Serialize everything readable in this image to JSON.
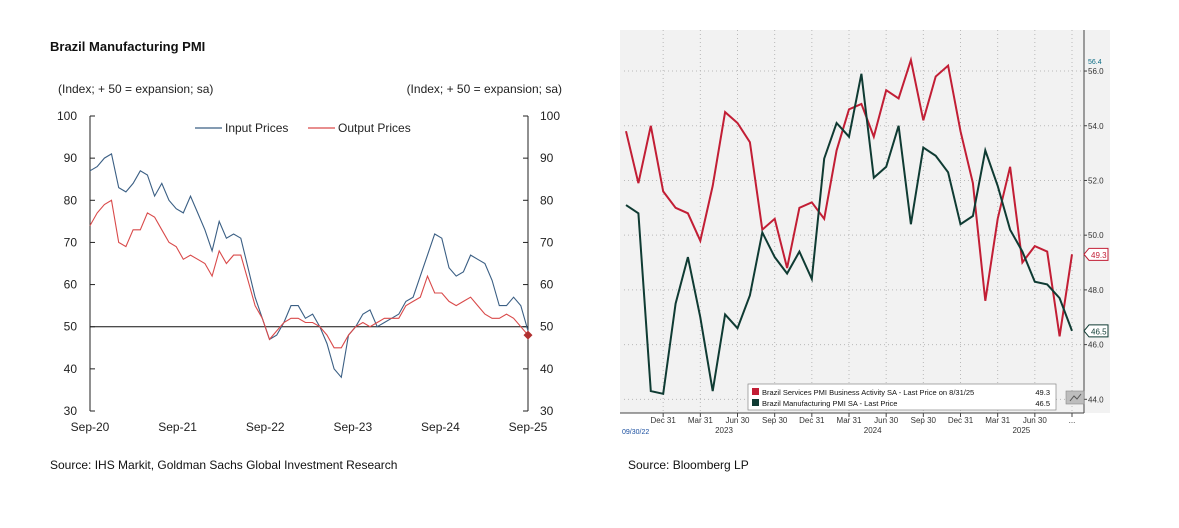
{
  "sources": {
    "left": "Source: IHS Markit, Goldman Sachs Global Investment Research",
    "right": "Source: Bloomberg LP"
  },
  "chart_data": [
    {
      "type": "line",
      "title": "Brazil Manufacturing PMI",
      "ylabel_left": "(Index; + 50 = expansion; sa)",
      "ylabel_right": "(Index; + 50 = expansion; sa)",
      "ylim": [
        30,
        100
      ],
      "yticks": [
        30,
        40,
        50,
        60,
        70,
        80,
        90,
        100
      ],
      "reference_line": 50,
      "xtick_labels": [
        "Sep-20",
        "Sep-21",
        "Sep-22",
        "Sep-23",
        "Sep-24",
        "Sep-25"
      ],
      "x_start": "Sep-20",
      "x_end": "Sep-25",
      "legend": [
        "Input Prices",
        "Output Prices"
      ],
      "colors": {
        "input": "#3b5f84",
        "output": "#d94a4a",
        "marker": "#b03030"
      },
      "series": [
        {
          "name": "Input Prices",
          "values": [
            87,
            88,
            90,
            91,
            83,
            82,
            84,
            87,
            86,
            81,
            84,
            80,
            78,
            77,
            81,
            77,
            73,
            68,
            75,
            71,
            72,
            71,
            64,
            57,
            52,
            47,
            48,
            51,
            55,
            55,
            52,
            53,
            50,
            46,
            40,
            38,
            48,
            50,
            53,
            54,
            50,
            51,
            52,
            53,
            56,
            57,
            62,
            67,
            72,
            71,
            64,
            62,
            63,
            67,
            66,
            65,
            61,
            55,
            55,
            57,
            55,
            49
          ]
        },
        {
          "name": "Output Prices",
          "values": [
            74,
            77,
            79,
            80,
            70,
            69,
            73,
            73,
            77,
            76,
            73,
            70,
            69,
            66,
            67,
            66,
            65,
            62,
            68,
            65,
            67,
            67,
            61,
            55,
            52,
            47,
            49,
            51,
            52,
            52,
            51,
            51,
            50,
            48,
            45,
            45,
            48,
            50,
            51,
            50,
            51,
            52,
            52,
            52,
            55,
            56,
            57,
            62,
            58,
            58,
            56,
            55,
            56,
            57,
            55,
            53,
            52,
            52,
            53,
            52,
            50,
            48
          ]
        }
      ],
      "last_marker_value": 48
    },
    {
      "type": "line",
      "title": "",
      "ylim": [
        43.5,
        57.5
      ],
      "yticks": [
        "44.0",
        "46.0",
        "48.0",
        "50.0",
        "52.0",
        "54.0",
        "56.0"
      ],
      "top_tag": "56.4",
      "x_start_label": "09/30/22",
      "x_month_labels": [
        "Dec 31",
        "Mar 31",
        "Jun 30",
        "Sep 30",
        "Dec 31",
        "Mar 31",
        "Jun 30",
        "Sep 30",
        "Dec 31",
        "Mar 31",
        "Jun 30",
        "..."
      ],
      "x_year_labels": [
        "2023",
        "2024",
        "2025"
      ],
      "colors": {
        "services": "#c21e35",
        "manufacturing": "#0f3b33"
      },
      "series": [
        {
          "name": "Brazil Services PMI Business Activity SA - Last Price on 8/31/25",
          "last": "49.3",
          "values": [
            53.8,
            51.9,
            54.0,
            51.6,
            51.0,
            50.8,
            49.8,
            51.8,
            54.5,
            54.1,
            53.4,
            50.2,
            50.6,
            48.8,
            51.0,
            51.2,
            50.6,
            53.1,
            54.6,
            54.8,
            53.6,
            55.3,
            55.0,
            56.4,
            54.2,
            55.8,
            56.2,
            53.8,
            51.9,
            47.6,
            50.6,
            52.5,
            49.0,
            49.6,
            49.4,
            46.3,
            49.3
          ]
        },
        {
          "name": "Brazil Manufacturing PMI SA - Last Price",
          "last": "46.5",
          "values": [
            51.1,
            50.8,
            44.3,
            44.2,
            47.5,
            49.2,
            47.0,
            44.3,
            47.1,
            46.6,
            47.8,
            50.1,
            49.2,
            48.6,
            49.4,
            48.4,
            52.8,
            54.1,
            53.6,
            55.9,
            52.1,
            52.5,
            54.0,
            50.4,
            53.2,
            52.9,
            52.3,
            50.4,
            50.7,
            53.1,
            51.8,
            50.2,
            49.4,
            48.3,
            48.2,
            47.7,
            46.5
          ]
        }
      ]
    }
  ]
}
